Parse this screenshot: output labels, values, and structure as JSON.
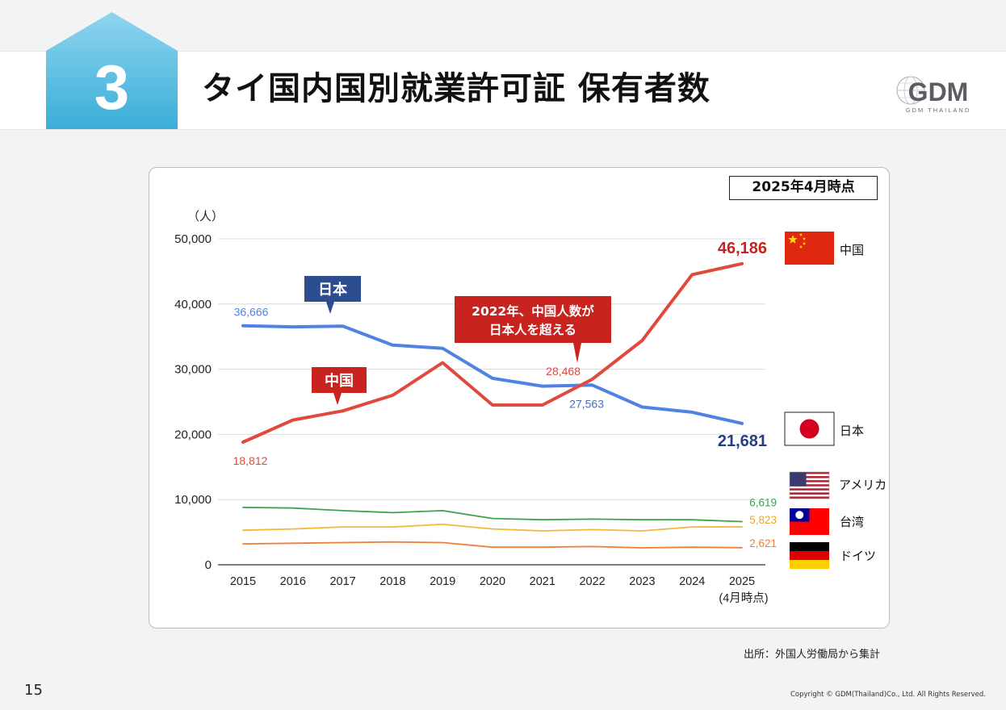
{
  "header": {
    "section_number": "3",
    "title": "タイ国内国別就業許可証 保有者数"
  },
  "logo": {
    "main": "GDM",
    "sub": "GDM THAILAND"
  },
  "as_of": "2025年4月時点",
  "footer": {
    "source": "出所：外国人労働局から集計",
    "page_number": "15",
    "copyright": "Copyright © GDM(Thailand)Co., Ltd. All Rights Reserved."
  },
  "colors": {
    "japan": "#4f82e3",
    "china": "#e04a3c",
    "usa": "#3ba34a",
    "taiwan": "#f2b83a",
    "germany": "#f07d3a",
    "badge": "#4fb6dc",
    "callout_japan": "#2c4d8f",
    "callout_china": "#c8231f"
  },
  "chart_data": {
    "type": "line",
    "unit": "（人）",
    "ylim": [
      0,
      50000
    ],
    "yticks": [
      "50,000",
      "40,000",
      "30,000",
      "20,000",
      "10,000",
      "0"
    ],
    "ytick_values": [
      50000,
      40000,
      30000,
      20000,
      10000,
      0
    ],
    "categories": [
      "2015",
      "2016",
      "2017",
      "2018",
      "2019",
      "2020",
      "2021",
      "2022",
      "2023",
      "2024",
      "2025"
    ],
    "last_category_note": "(4月時点)",
    "grid": "horizontal",
    "series": [
      {
        "key": "japan",
        "name": "日本",
        "values": [
          36666,
          36500,
          36600,
          33700,
          33200,
          28600,
          27400,
          27563,
          24200,
          23400,
          21681
        ]
      },
      {
        "key": "china",
        "name": "中国",
        "values": [
          18812,
          22200,
          23600,
          26000,
          31000,
          24500,
          24500,
          28468,
          34400,
          44500,
          46186
        ]
      },
      {
        "key": "usa",
        "name": "アメリカ",
        "values": [
          8800,
          8700,
          8300,
          8000,
          8300,
          7100,
          6900,
          7000,
          6900,
          6900,
          6619
        ]
      },
      {
        "key": "taiwan",
        "name": "台湾",
        "values": [
          5300,
          5500,
          5800,
          5800,
          6200,
          5500,
          5200,
          5400,
          5200,
          5800,
          5823
        ]
      },
      {
        "key": "germany",
        "name": "ドイツ",
        "values": [
          3200,
          3300,
          3400,
          3500,
          3400,
          2700,
          2700,
          2800,
          2600,
          2700,
          2621
        ]
      }
    ],
    "data_labels": [
      {
        "series": "japan",
        "index": 0,
        "text": "36,666"
      },
      {
        "series": "china",
        "index": 0,
        "text": "18,812"
      },
      {
        "series": "china",
        "index": 7,
        "text": "28,468"
      },
      {
        "series": "japan",
        "index": 7,
        "text": "27,563"
      },
      {
        "series": "china",
        "index": 10,
        "text": "46,186"
      },
      {
        "series": "japan",
        "index": 10,
        "text": "21,681"
      },
      {
        "series": "usa",
        "index": 10,
        "text": "6,619"
      },
      {
        "series": "taiwan",
        "index": 10,
        "text": "5,823"
      },
      {
        "series": "germany",
        "index": 10,
        "text": "2,621"
      }
    ],
    "callouts": {
      "japan": "日本",
      "china": "中国",
      "crossover_line1": "2022年、中国人数が",
      "crossover_line2": "日本人を超える"
    },
    "legend": [
      {
        "key": "china",
        "label": "中国",
        "flag": "china-flag"
      },
      {
        "key": "japan",
        "label": "日本",
        "flag": "japan-flag"
      },
      {
        "key": "usa",
        "label": "アメリカ",
        "flag": "usa-flag"
      },
      {
        "key": "taiwan",
        "label": "台湾",
        "flag": "taiwan-flag"
      },
      {
        "key": "germany",
        "label": "ドイツ",
        "flag": "germany-flag"
      }
    ]
  }
}
